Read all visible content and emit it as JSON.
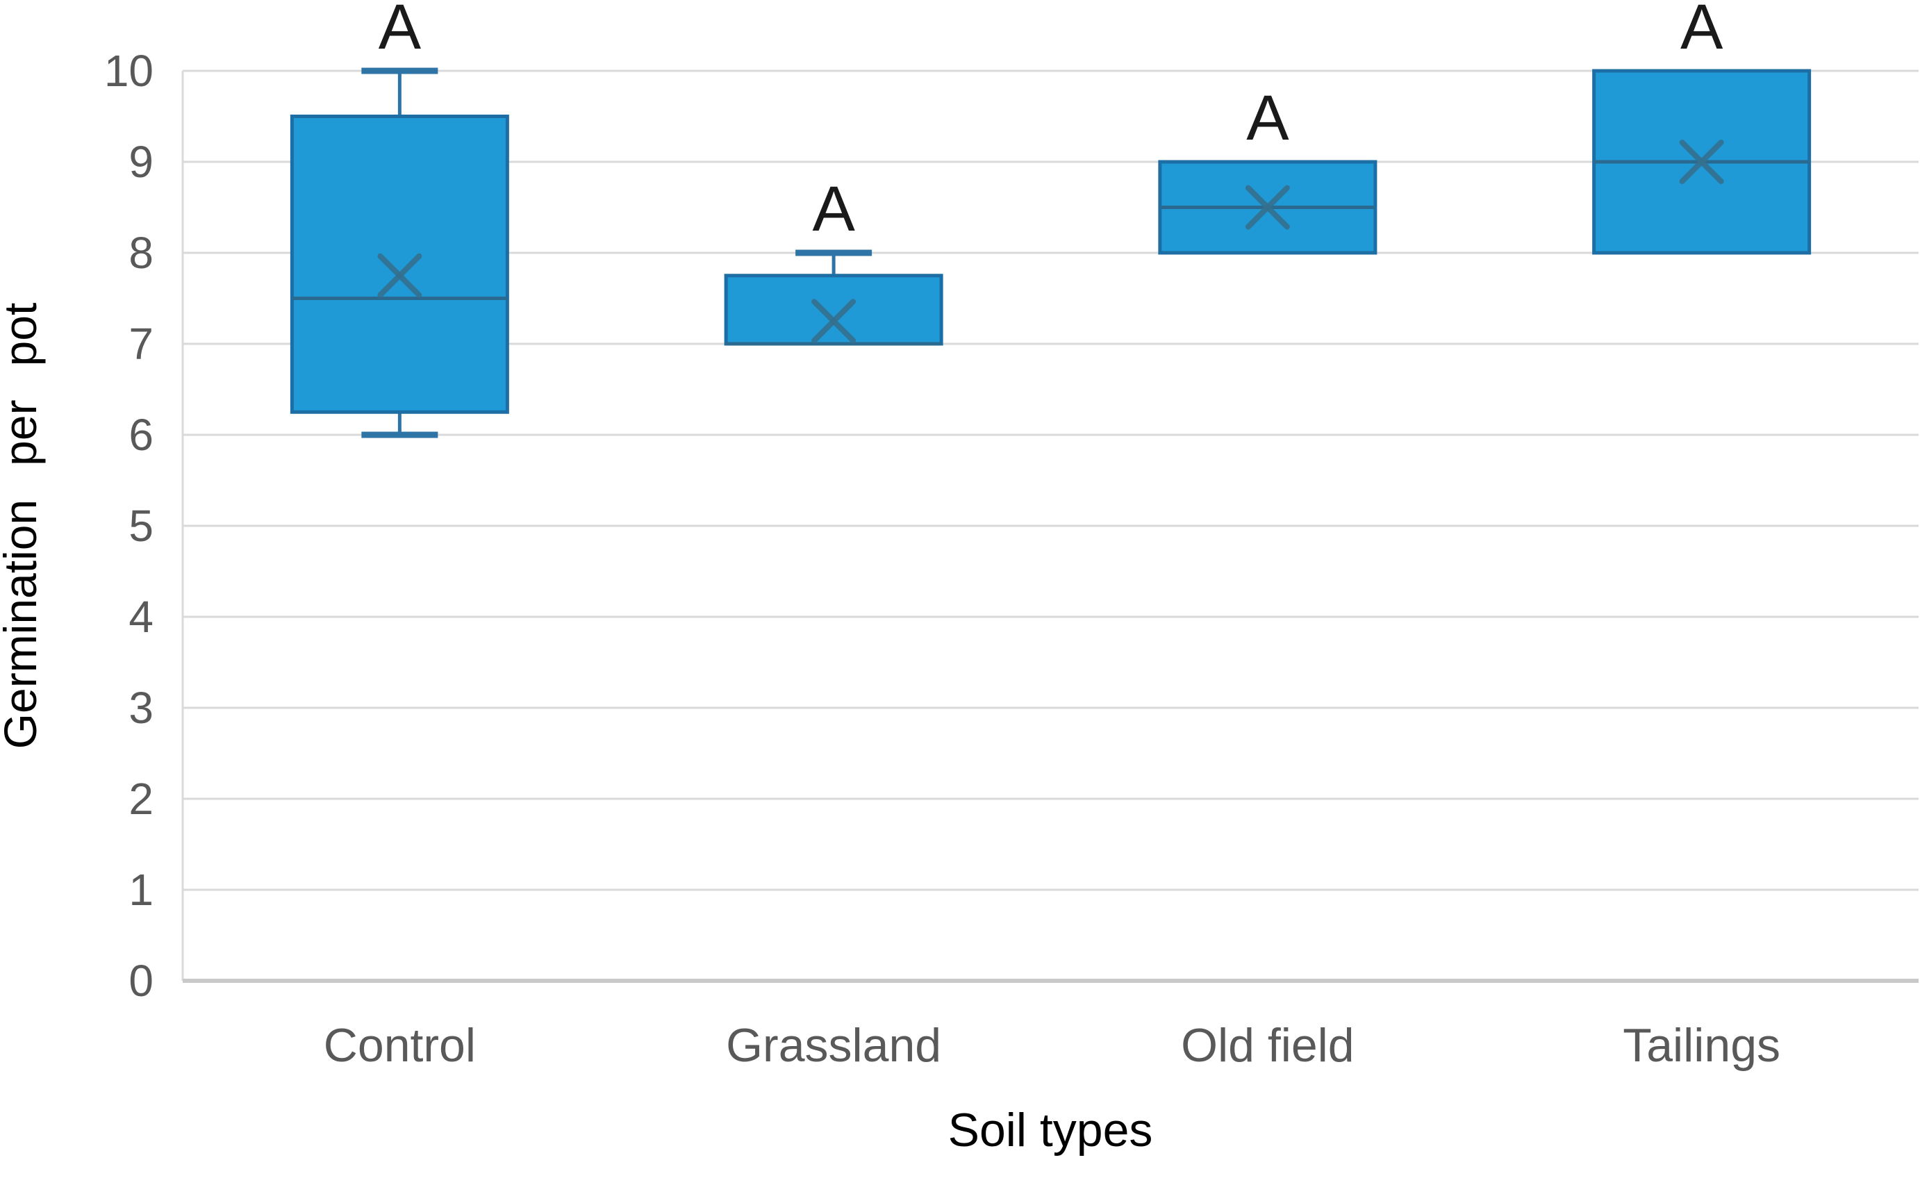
{
  "chart_data": {
    "type": "boxplot",
    "title": "",
    "xlabel": "Soil types",
    "ylabel": "Germination per pot",
    "categories": [
      "Control",
      "Grassland",
      "Old field",
      "Tailings"
    ],
    "ylim": [
      0,
      10
    ],
    "yticks": [
      0,
      1,
      2,
      3,
      4,
      5,
      6,
      7,
      8,
      9,
      10
    ],
    "grid": "horizontal-gridlines",
    "legend": "none",
    "mean_marker_style": "x",
    "series": [
      {
        "name": "Control",
        "min": 6,
        "q1": 6.25,
        "median": 7.5,
        "q3": 9.5,
        "max": 10,
        "mean": 7.75,
        "significance": "A"
      },
      {
        "name": "Grassland",
        "min": 7,
        "q1": 7,
        "median": 7,
        "q3": 7.75,
        "max": 8,
        "mean": 7.25,
        "significance": "A"
      },
      {
        "name": "Old field",
        "min": 8,
        "q1": 8,
        "median": 8.5,
        "q3": 9,
        "max": 9,
        "mean": 8.5,
        "significance": "A"
      },
      {
        "name": "Tailings",
        "min": 8,
        "q1": 8,
        "median": 9,
        "q3": 10,
        "max": 10,
        "mean": 9,
        "significance": "A"
      }
    ],
    "colors": {
      "box_fill": "#1F9AD7",
      "box_border": "#1C6EA4",
      "whisker": "#2E74A6",
      "median": "#2A6A90",
      "mean_marker": "#35708E",
      "gridline": "#D9D9D9",
      "axis_line": "#C9C9C9",
      "tick_label": "#595959",
      "axis_title": "#595959",
      "significance_label": "#1A1A1A"
    }
  }
}
